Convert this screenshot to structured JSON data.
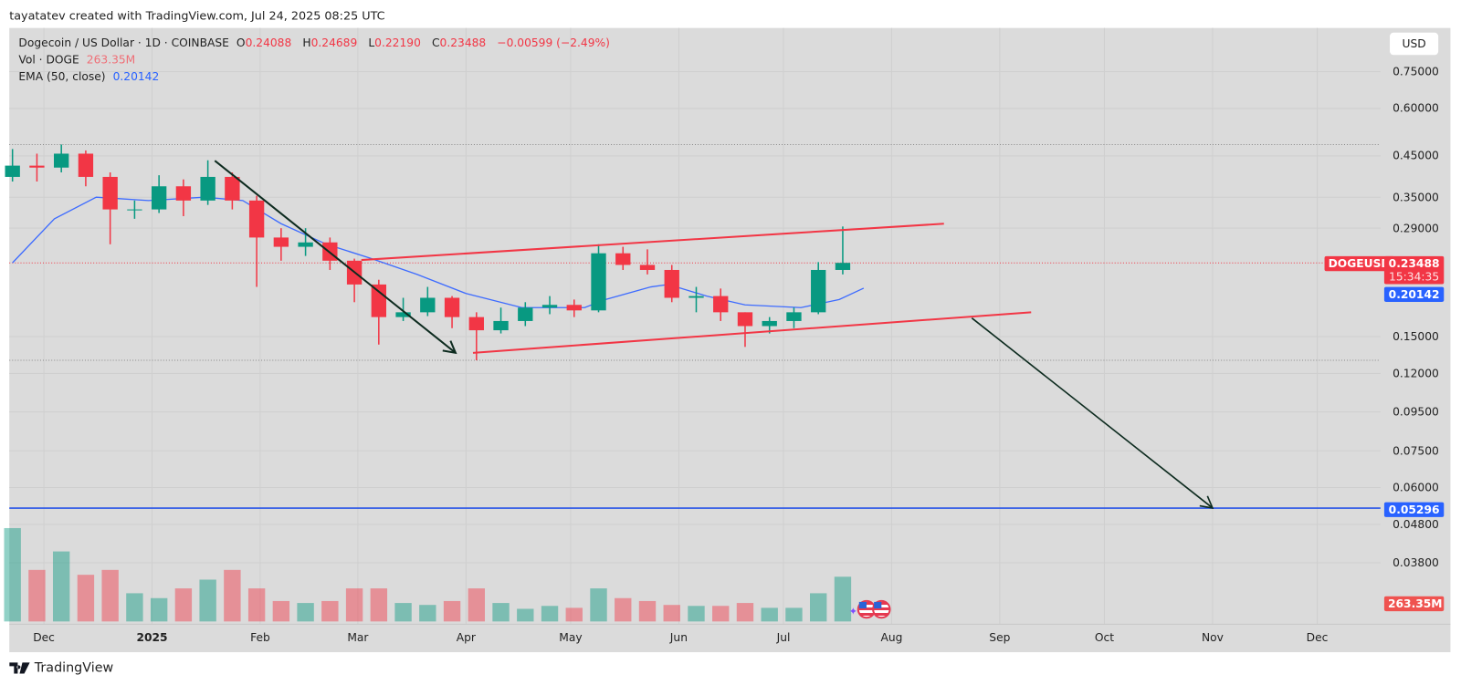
{
  "header": {
    "attribution": "tayatatev created with TradingView.com, Jul 24, 2025 08:25 UTC"
  },
  "legend": {
    "symbol_desc": "Dogecoin / US Dollar · 1D · COINBASE",
    "o_label": "O",
    "o": "0.24088",
    "h_label": "H",
    "h": "0.24689",
    "l_label": "L",
    "l": "0.22190",
    "c_label": "C",
    "c": "0.23488",
    "change": "−0.00599 (−2.49%)",
    "vol_label": "Vol · DOGE",
    "vol_value": "263.35M",
    "ema_label": "EMA (50, close)",
    "ema_value": "0.20142"
  },
  "currency_button": "USD",
  "price_labels": {
    "symbol": "DOGEUSD",
    "last": "0.23488",
    "countdown": "15:34:35",
    "ema": "0.20142",
    "hline": "0.05296",
    "volume": "263.35M"
  },
  "footer": {
    "brand": "TradingView"
  },
  "colors": {
    "up": "#089981",
    "down": "#f23645",
    "ema": "#3d6bff",
    "channel": "#f23645",
    "arrow": "#0d2b1f",
    "hline": "#2955e8",
    "background": "#dbdbdb"
  },
  "chart_data": {
    "type": "candlestick",
    "title": "Dogecoin / US Dollar · 1D · COINBASE",
    "y_scale": "log",
    "grid": true,
    "price_ticks": [
      "0.75000",
      "0.60000",
      "0.45000",
      "0.35000",
      "0.29000",
      "0.15000",
      "0.12000",
      "0.09500",
      "0.07500",
      "0.06000",
      "0.04800",
      "0.03800"
    ],
    "x_ticks": [
      {
        "label": "Dec",
        "date": "2024-12-01"
      },
      {
        "label": "2025",
        "date": "2025-01-01",
        "bold": true
      },
      {
        "label": "Feb",
        "date": "2025-02-01"
      },
      {
        "label": "Mar",
        "date": "2025-03-01"
      },
      {
        "label": "Apr",
        "date": "2025-04-01"
      },
      {
        "label": "May",
        "date": "2025-05-01"
      },
      {
        "label": "Jun",
        "date": "2025-06-01"
      },
      {
        "label": "Jul",
        "date": "2025-07-01"
      },
      {
        "label": "Aug",
        "date": "2025-08-01"
      },
      {
        "label": "Sep",
        "date": "2025-09-01"
      },
      {
        "label": "Oct",
        "date": "2025-10-01"
      },
      {
        "label": "Nov",
        "date": "2025-11-01"
      },
      {
        "label": "Dec",
        "date": "2025-12-01"
      }
    ],
    "candles_columns": [
      "date",
      "open",
      "high",
      "low",
      "close",
      "volume_M"
    ],
    "candles": [
      [
        "2024-11-22",
        0.396,
        0.469,
        0.385,
        0.424,
        480
      ],
      [
        "2024-11-29",
        0.424,
        0.456,
        0.385,
        0.419,
        265
      ],
      [
        "2024-12-06",
        0.419,
        0.482,
        0.407,
        0.456,
        360
      ],
      [
        "2024-12-13",
        0.456,
        0.465,
        0.374,
        0.396,
        240
      ],
      [
        "2024-12-20",
        0.396,
        0.407,
        0.263,
        0.325,
        265
      ],
      [
        "2024-12-27",
        0.325,
        0.343,
        0.307,
        0.325,
        145
      ],
      [
        "2025-01-03",
        0.325,
        0.4,
        0.318,
        0.374,
        120
      ],
      [
        "2025-01-10",
        0.374,
        0.39,
        0.312,
        0.343,
        170
      ],
      [
        "2025-01-17",
        0.343,
        0.438,
        0.334,
        0.396,
        215
      ],
      [
        "2025-01-24",
        0.396,
        0.407,
        0.325,
        0.343,
        265
      ],
      [
        "2025-01-31",
        0.343,
        0.353,
        0.203,
        0.274,
        170
      ],
      [
        "2025-02-07",
        0.274,
        0.29,
        0.238,
        0.259,
        105
      ],
      [
        "2025-02-14",
        0.259,
        0.29,
        0.245,
        0.266,
        95
      ],
      [
        "2025-02-21",
        0.266,
        0.274,
        0.225,
        0.238,
        105
      ],
      [
        "2025-02-28",
        0.238,
        0.241,
        0.185,
        0.206,
        170
      ],
      [
        "2025-03-07",
        0.206,
        0.212,
        0.143,
        0.169,
        170
      ],
      [
        "2025-03-14",
        0.169,
        0.19,
        0.165,
        0.174,
        95
      ],
      [
        "2025-03-21",
        0.174,
        0.203,
        0.17,
        0.19,
        85
      ],
      [
        "2025-03-28",
        0.19,
        0.192,
        0.158,
        0.169,
        105
      ],
      [
        "2025-04-04",
        0.169,
        0.174,
        0.13,
        0.156,
        170
      ],
      [
        "2025-04-11",
        0.156,
        0.179,
        0.153,
        0.165,
        95
      ],
      [
        "2025-04-18",
        0.165,
        0.185,
        0.16,
        0.179,
        65
      ],
      [
        "2025-04-25",
        0.179,
        0.192,
        0.172,
        0.182,
        80
      ],
      [
        "2025-05-02",
        0.182,
        0.188,
        0.169,
        0.176,
        70
      ],
      [
        "2025-05-09",
        0.176,
        0.263,
        0.174,
        0.249,
        170
      ],
      [
        "2025-05-16",
        0.249,
        0.259,
        0.225,
        0.232,
        120
      ],
      [
        "2025-05-23",
        0.232,
        0.255,
        0.219,
        0.225,
        105
      ],
      [
        "2025-05-30",
        0.225,
        0.232,
        0.185,
        0.19,
        85
      ],
      [
        "2025-06-06",
        0.19,
        0.203,
        0.174,
        0.192,
        80
      ],
      [
        "2025-06-13",
        0.192,
        0.201,
        0.165,
        0.174,
        80
      ],
      [
        "2025-06-20",
        0.174,
        0.174,
        0.141,
        0.16,
        95
      ],
      [
        "2025-06-27",
        0.16,
        0.169,
        0.153,
        0.165,
        70
      ],
      [
        "2025-07-04",
        0.165,
        0.179,
        0.158,
        0.174,
        70
      ],
      [
        "2025-07-11",
        0.174,
        0.236,
        0.172,
        0.225,
        145
      ],
      [
        "2025-07-18",
        0.225,
        0.293,
        0.219,
        0.23488,
        230
      ]
    ],
    "ema": {
      "name": "EMA (50, close)",
      "points": [
        [
          "2024-11-22",
          0.235
        ],
        [
          "2024-12-04",
          0.307
        ],
        [
          "2024-12-16",
          0.35
        ],
        [
          "2024-12-31",
          0.343
        ],
        [
          "2025-01-16",
          0.35
        ],
        [
          "2025-01-27",
          0.343
        ],
        [
          "2025-02-07",
          0.298
        ],
        [
          "2025-02-20",
          0.263
        ],
        [
          "2025-03-05",
          0.241
        ],
        [
          "2025-03-18",
          0.219
        ],
        [
          "2025-04-01",
          0.195
        ],
        [
          "2025-04-17",
          0.179
        ],
        [
          "2025-05-05",
          0.179
        ],
        [
          "2025-05-11",
          0.188
        ],
        [
          "2025-05-24",
          0.203
        ],
        [
          "2025-05-29",
          0.206
        ],
        [
          "2025-06-09",
          0.192
        ],
        [
          "2025-06-20",
          0.182
        ],
        [
          "2025-07-06",
          0.179
        ],
        [
          "2025-07-17",
          0.188
        ],
        [
          "2025-07-24",
          0.20142
        ]
      ]
    },
    "last_price": 0.23488,
    "drawings": {
      "downtrend_arrow": [
        [
          "2025-01-19",
          0.437
        ],
        [
          "2025-03-29",
          0.136
        ]
      ],
      "channel_upper": [
        [
          "2025-03-02",
          0.239
        ],
        [
          "2025-08-16",
          0.298
        ]
      ],
      "channel_lower": [
        [
          "2025-04-03",
          0.136
        ],
        [
          "2025-09-10",
          0.174
        ]
      ],
      "target_arrow": [
        [
          "2025-08-24",
          0.168
        ],
        [
          "2025-11-01",
          0.053
        ]
      ],
      "horizontal_line": 0.05296,
      "dotted_levels": [
        0.482,
        0.13
      ]
    }
  }
}
